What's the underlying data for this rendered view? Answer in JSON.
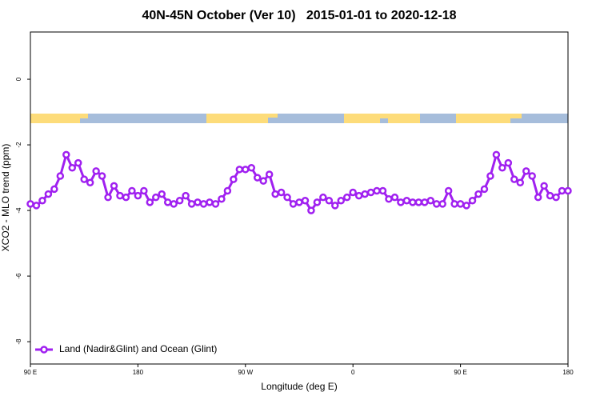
{
  "chart_data": {
    "type": "line",
    "title": "40N-45N October (Ver 10)   2015-01-01 to 2020-12-18",
    "x_label": "Longitude (deg E)",
    "y_label": "XCO2 - MLO trend (ppm)",
    "x": [
      90,
      95,
      100,
      105,
      110,
      115,
      120,
      125,
      130,
      135,
      140,
      145,
      150,
      155,
      160,
      165,
      170,
      175,
      180,
      185,
      190,
      195,
      200,
      205,
      210,
      215,
      220,
      225,
      230,
      235,
      240,
      245,
      250,
      255,
      260,
      265,
      270,
      275,
      280,
      285,
      290,
      295,
      300,
      305,
      310,
      315,
      320,
      325,
      330,
      335,
      340,
      345,
      350,
      355,
      360,
      365,
      370,
      375,
      380,
      385,
      390,
      395,
      400,
      405,
      410,
      415,
      420,
      425,
      430,
      435,
      440,
      445,
      450,
      455,
      460,
      465,
      470,
      475,
      480,
      485,
      490,
      495,
      500,
      505,
      510,
      515,
      520,
      525,
      530,
      535,
      540
    ],
    "series": [
      {
        "name": "Land (Nadir&Glint) and Ocean (Glint)",
        "color": "#a020f0",
        "values": [
          -3.8,
          -3.85,
          -3.7,
          -3.5,
          -3.35,
          -2.95,
          -2.3,
          -2.7,
          -2.55,
          -3.05,
          -3.15,
          -2.8,
          -2.95,
          -3.6,
          -3.25,
          -3.55,
          -3.6,
          -3.4,
          -3.55,
          -3.4,
          -3.75,
          -3.6,
          -3.5,
          -3.75,
          -3.8,
          -3.7,
          -3.55,
          -3.8,
          -3.75,
          -3.8,
          -3.75,
          -3.8,
          -3.65,
          -3.4,
          -3.05,
          -2.75,
          -2.75,
          -2.7,
          -3.0,
          -3.1,
          -2.9,
          -3.5,
          -3.45,
          -3.6,
          -3.8,
          -3.75,
          -3.7,
          -4.0,
          -3.75,
          -3.6,
          -3.7,
          -3.85,
          -3.7,
          -3.6,
          -3.45,
          -3.55,
          -3.5,
          -3.45,
          -3.4,
          -3.4,
          -3.65,
          -3.6,
          -3.75,
          -3.7,
          -3.75,
          -3.75,
          -3.75,
          -3.7,
          -3.8,
          -3.8,
          -3.4,
          -3.8,
          -3.8,
          -3.85,
          -3.7,
          -3.5,
          -3.35,
          -2.95,
          -2.3,
          -2.7,
          -2.55,
          -3.05,
          -3.15,
          -2.8,
          -2.95,
          -3.6,
          -3.25,
          -3.55,
          -3.6,
          -3.4,
          -3.4
        ]
      }
    ],
    "xlim": [
      90,
      540
    ],
    "xticks": [
      {
        "value": 90,
        "label": "90 E"
      },
      180,
      {
        "value": 270,
        "label": "90 W"
      },
      {
        "value": 360,
        "label": "0"
      },
      {
        "value": 450,
        "label": "90 E"
      },
      {
        "value": 540,
        "label": "180"
      }
    ],
    "ylim": [
      -8.68,
      1.44
    ],
    "yticks": [
      0,
      -2,
      -4,
      -6,
      -8
    ],
    "legend": "lower left"
  }
}
